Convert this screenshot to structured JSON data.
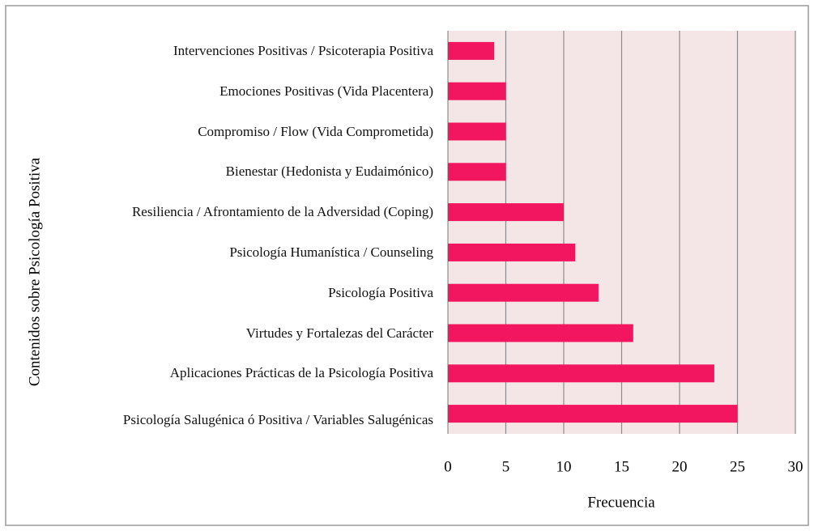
{
  "chart_data": {
    "type": "bar",
    "orientation": "horizontal",
    "x_label": "Frecuencia",
    "y_label": "Contenidos sobre Psicología Positiva",
    "categories": [
      "Intervenciones Positivas / Psicoterapia Positiva",
      "Emociones Positivas (Vida Placentera)",
      "Compromiso / Flow (Vida Comprometida)",
      "Bienestar (Hedonista y Eudaimónico)",
      "Resiliencia / Afrontamiento de la Adversidad (Coping)",
      "Psicología Humanística / Counseling",
      "Psicología Positiva",
      "Virtudes y Fortalezas del Carácter",
      "Aplicaciones Prácticas de la Psicología Positiva",
      "Psicología Salugénica ó Positiva / Variables Salugénicas"
    ],
    "values": [
      4,
      5,
      5,
      5,
      10,
      11,
      13,
      16,
      23,
      25
    ],
    "color": "#f2155f",
    "xlim": [
      0,
      30
    ],
    "xticks": [
      0,
      5,
      10,
      15,
      20,
      25,
      30
    ],
    "grid": true
  }
}
